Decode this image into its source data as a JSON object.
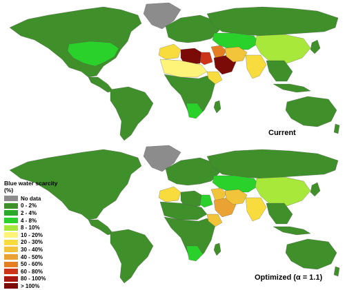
{
  "colors": {
    "no_data": "#8c8c8c",
    "c0_2": "#3f8f2b",
    "c2_4": "#2ca82a",
    "c4_8": "#29d12a",
    "c8_10": "#a8e83a",
    "c10_20": "#fff47a",
    "c20_30": "#f8dc3d",
    "c30_40": "#f1c43a",
    "c40_50": "#eaa232",
    "c50_60": "#e57e22",
    "c60_80": "#cc3318",
    "c80_100": "#a8170f",
    "c100": "#7a0b07"
  },
  "legend": {
    "title": "Blue water scarcity (%)",
    "items": [
      {
        "label": "No data",
        "color": "#8c8c8c"
      },
      {
        "label": "0 - 2%",
        "color": "#3f8f2b"
      },
      {
        "label": "2 - 4%",
        "color": "#2ca82a"
      },
      {
        "label": "4 - 8%",
        "color": "#29d12a"
      },
      {
        "label": "8 - 10%",
        "color": "#a8e83a"
      },
      {
        "label": "10 - 20%",
        "color": "#fff47a"
      },
      {
        "label": "20 - 30%",
        "color": "#f8dc3d"
      },
      {
        "label": "30 - 40%",
        "color": "#f1c43a"
      },
      {
        "label": "40 - 50%",
        "color": "#eaa232"
      },
      {
        "label": "50 - 60%",
        "color": "#e57e22"
      },
      {
        "label": "60 - 80%",
        "color": "#cc3318"
      },
      {
        "label": "80 - 100%",
        "color": "#a8170f"
      },
      {
        "label": "> 100%",
        "color": "#7a0b07"
      }
    ]
  },
  "maps": [
    {
      "label": "Current"
    },
    {
      "label": "Optimized (α = 1.1)"
    }
  ]
}
